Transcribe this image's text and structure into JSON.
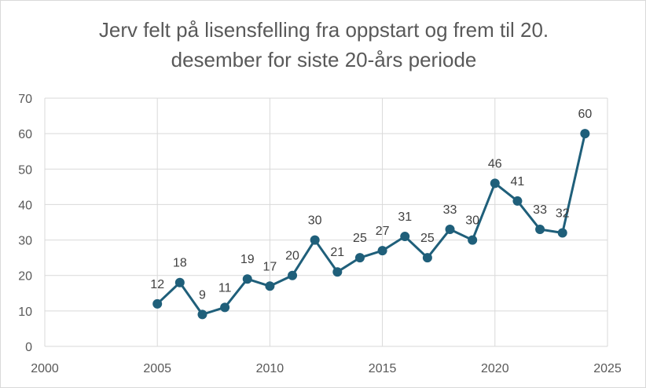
{
  "chart_data": {
    "type": "line",
    "title_lines": [
      "Jerv felt på lisensfelling fra oppstart og frem til 20.",
      "desember for siste 20-års periode"
    ],
    "xlabel": "",
    "ylabel": "",
    "xlim": [
      2000,
      2025
    ],
    "ylim": [
      0,
      70
    ],
    "x_ticks": [
      2000,
      2005,
      2010,
      2015,
      2020,
      2025
    ],
    "y_ticks": [
      0,
      10,
      20,
      30,
      40,
      50,
      60,
      70
    ],
    "grid": true,
    "legend": "none",
    "color": "#1f5f7a",
    "series": [
      {
        "x": [
          2005,
          2006,
          2007,
          2008,
          2009,
          2010,
          2011,
          2012,
          2013,
          2014,
          2015,
          2016,
          2017,
          2018,
          2019,
          2020,
          2021,
          2022,
          2023,
          2024
        ],
        "values": [
          12,
          18,
          9,
          11,
          19,
          17,
          20,
          30,
          21,
          25,
          27,
          31,
          25,
          33,
          30,
          46,
          41,
          33,
          32,
          60
        ]
      }
    ]
  }
}
